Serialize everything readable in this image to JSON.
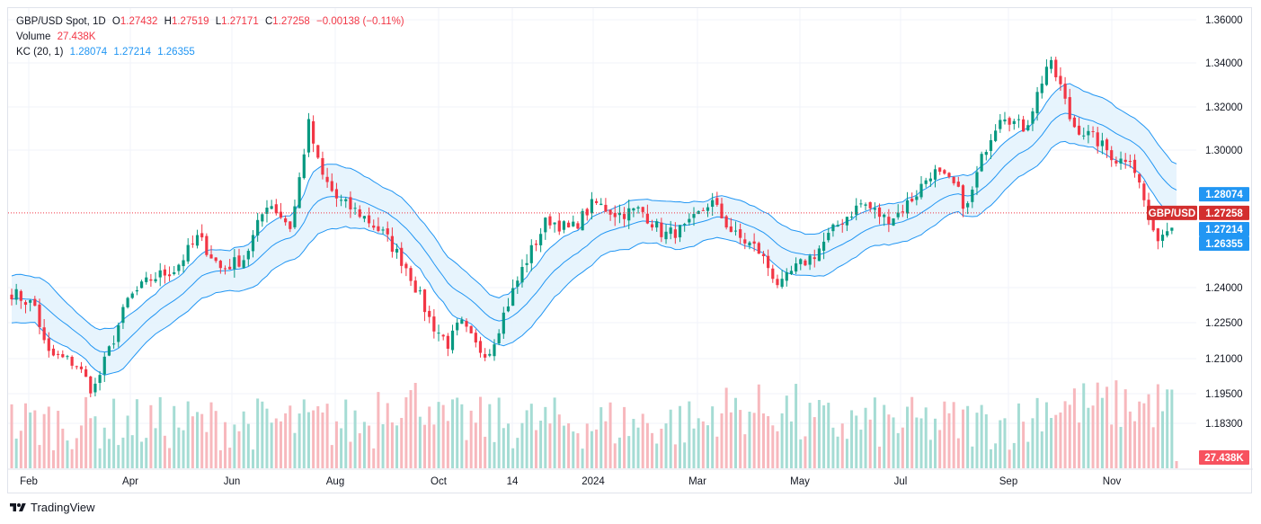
{
  "legend": {
    "symbol": "GBP/USD Spot, 1D",
    "o_label": "O",
    "o_value": "1.27432",
    "h_label": "H",
    "h_value": "1.27519",
    "l_label": "L",
    "l_value": "1.27171",
    "c_label": "C",
    "c_value": "1.27258",
    "change": "−0.00138 (−0.11%)",
    "volume_label": "Volume",
    "volume_value": "27.438K",
    "kc_label": "KC (20, 1)",
    "kc_upper": "1.28074",
    "kc_middle": "1.27214",
    "kc_lower": "1.26355"
  },
  "brand": {
    "name": "TradingView"
  },
  "colors": {
    "up": "#089981",
    "down": "#f23645",
    "kc": "#2196f3",
    "kc_fill": "#e3f2fd",
    "vol_up": "#a5dcd4",
    "vol_down": "#f7b8bd",
    "grid": "#f0f3fa"
  },
  "chart_data": {
    "type": "candlestick",
    "title": "GBP/USD Spot, 1D",
    "y_axis": {
      "ticks": [
        1.36,
        1.34,
        1.32,
        1.3,
        1.24,
        1.225,
        1.21,
        1.195,
        1.183
      ],
      "tick_labels": [
        "1.36000",
        "1.34000",
        "1.32000",
        "1.30000",
        "1.24000",
        "1.22500",
        "1.21000",
        "1.19500",
        "1.18300"
      ],
      "ylim": [
        1.177,
        1.365
      ]
    },
    "x_axis": {
      "tick_labels": [
        "Feb",
        "Apr",
        "Jun",
        "Aug",
        "Oct",
        "14",
        "2024",
        "Mar",
        "May",
        "Jul",
        "Sep",
        "Nov"
      ]
    },
    "price_path": [
      {
        "t": 0,
        "p": 1.238
      },
      {
        "t": 0.02,
        "p": 1.232
      },
      {
        "t": 0.03,
        "p": 1.212
      },
      {
        "t": 0.055,
        "p": 1.208
      },
      {
        "t": 0.07,
        "p": 1.196
      },
      {
        "t": 0.085,
        "p": 1.215
      },
      {
        "t": 0.1,
        "p": 1.235
      },
      {
        "t": 0.12,
        "p": 1.244
      },
      {
        "t": 0.14,
        "p": 1.248
      },
      {
        "t": 0.16,
        "p": 1.262
      },
      {
        "t": 0.18,
        "p": 1.248
      },
      {
        "t": 0.2,
        "p": 1.253
      },
      {
        "t": 0.22,
        "p": 1.278
      },
      {
        "t": 0.24,
        "p": 1.266
      },
      {
        "t": 0.255,
        "p": 1.312
      },
      {
        "t": 0.265,
        "p": 1.29
      },
      {
        "t": 0.28,
        "p": 1.278
      },
      {
        "t": 0.3,
        "p": 1.272
      },
      {
        "t": 0.32,
        "p": 1.263
      },
      {
        "t": 0.34,
        "p": 1.248
      },
      {
        "t": 0.36,
        "p": 1.225
      },
      {
        "t": 0.375,
        "p": 1.216
      },
      {
        "t": 0.385,
        "p": 1.225
      },
      {
        "t": 0.4,
        "p": 1.214
      },
      {
        "t": 0.41,
        "p": 1.213
      },
      {
        "t": 0.425,
        "p": 1.232
      },
      {
        "t": 0.44,
        "p": 1.25
      },
      {
        "t": 0.46,
        "p": 1.27
      },
      {
        "t": 0.48,
        "p": 1.265
      },
      {
        "t": 0.5,
        "p": 1.277
      },
      {
        "t": 0.52,
        "p": 1.272
      },
      {
        "t": 0.54,
        "p": 1.274
      },
      {
        "t": 0.56,
        "p": 1.263
      },
      {
        "t": 0.58,
        "p": 1.266
      },
      {
        "t": 0.6,
        "p": 1.278
      },
      {
        "t": 0.62,
        "p": 1.263
      },
      {
        "t": 0.64,
        "p": 1.257
      },
      {
        "t": 0.66,
        "p": 1.24
      },
      {
        "t": 0.67,
        "p": 1.247
      },
      {
        "t": 0.69,
        "p": 1.255
      },
      {
        "t": 0.71,
        "p": 1.268
      },
      {
        "t": 0.73,
        "p": 1.277
      },
      {
        "t": 0.75,
        "p": 1.27
      },
      {
        "t": 0.76,
        "p": 1.272
      },
      {
        "t": 0.775,
        "p": 1.28
      },
      {
        "t": 0.79,
        "p": 1.291
      },
      {
        "t": 0.81,
        "p": 1.284
      },
      {
        "t": 0.82,
        "p": 1.274
      },
      {
        "t": 0.835,
        "p": 1.3
      },
      {
        "t": 0.85,
        "p": 1.318
      },
      {
        "t": 0.86,
        "p": 1.313
      },
      {
        "t": 0.87,
        "p": 1.31
      },
      {
        "t": 0.88,
        "p": 1.325
      },
      {
        "t": 0.89,
        "p": 1.341
      },
      {
        "t": 0.9,
        "p": 1.33
      },
      {
        "t": 0.91,
        "p": 1.312
      },
      {
        "t": 0.93,
        "p": 1.305
      },
      {
        "t": 0.95,
        "p": 1.295
      },
      {
        "t": 0.96,
        "p": 1.298
      },
      {
        "t": 0.97,
        "p": 1.282
      },
      {
        "t": 0.98,
        "p": 1.262
      },
      {
        "t": 0.99,
        "p": 1.264
      },
      {
        "t": 1.0,
        "p": 1.2725
      }
    ],
    "volume_series": "daily volume bars, green for up days, red for down days",
    "keltner_channel": {
      "period": 20,
      "multiplier": 1,
      "upper": 1.28074,
      "middle": 1.27214,
      "lower": 1.26355
    },
    "last_close": 1.27258,
    "last_volume": "27.438K",
    "price_labels": {
      "kc_upper": "1.28074",
      "symbol_tag": "GBP/USD",
      "close": "1.27258",
      "kc_middle": "1.27214",
      "kc_lower": "1.26355",
      "volume": "27.438K"
    }
  }
}
